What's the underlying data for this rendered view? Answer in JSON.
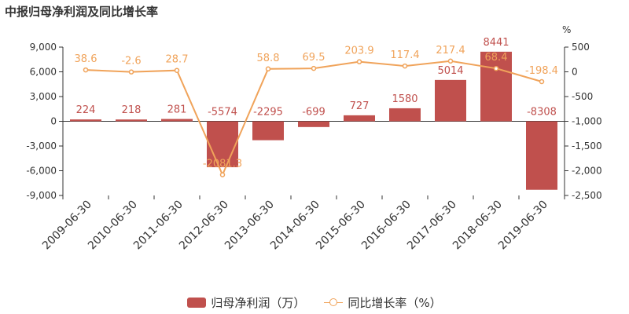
{
  "title": "中报归母净利润及同比增长率",
  "colors": {
    "bar": "#c0504d",
    "line": "#f0a35a",
    "axis": "#333333",
    "grid": "#e6e6e6"
  },
  "legend": {
    "bar_label": "归母净利润（万）",
    "line_label": "同比增长率（%）"
  },
  "chart_data": {
    "type": "bar+line",
    "title": "中报归母净利润及同比增长率",
    "categories": [
      "2009-06-30",
      "2010-06-30",
      "2011-06-30",
      "2012-06-30",
      "2013-06-30",
      "2014-06-30",
      "2015-06-30",
      "2016-06-30",
      "2017-06-30",
      "2018-06-30",
      "2019-06-30"
    ],
    "series": [
      {
        "name": "归母净利润（万）",
        "type": "bar",
        "axis": "left",
        "values": [
          224,
          218,
          281,
          -5574,
          -2295,
          -699,
          727,
          1580,
          5014,
          8441,
          -8308
        ],
        "labels": [
          "224",
          "218",
          "281",
          "-5574",
          "-2295",
          "-699",
          "727",
          "1580",
          "5014",
          "8441",
          "-8308"
        ]
      },
      {
        "name": "同比增长率（%）",
        "type": "line",
        "axis": "right",
        "values": [
          38.6,
          -2.6,
          28.7,
          -2081.3,
          58.8,
          69.5,
          203.9,
          117.4,
          217.4,
          68.4,
          -198.4
        ],
        "labels": [
          "38.6",
          "-2.6",
          "28.7",
          "-2081.3",
          "58.8",
          "69.5",
          "203.9",
          "117.4",
          "217.4",
          "68.4",
          "-198.4"
        ]
      }
    ],
    "y_left": {
      "ylim": [
        -9000,
        9000
      ],
      "ticks": [
        "9,000",
        "6,000",
        "3,000",
        "0",
        "-3,000",
        "-6,000",
        "-9,000"
      ],
      "tick_values": [
        9000,
        6000,
        3000,
        0,
        -3000,
        -6000,
        -9000
      ]
    },
    "y_right": {
      "unit": "%",
      "ylim": [
        -2500,
        500
      ],
      "ticks": [
        "500",
        "0",
        "-500",
        "-1,000",
        "-1,500",
        "-2,000",
        "-2,500"
      ],
      "tick_values": [
        500,
        0,
        -500,
        -1000,
        -1500,
        -2000,
        -2500
      ]
    },
    "grid": false,
    "legend_position": "bottom"
  }
}
